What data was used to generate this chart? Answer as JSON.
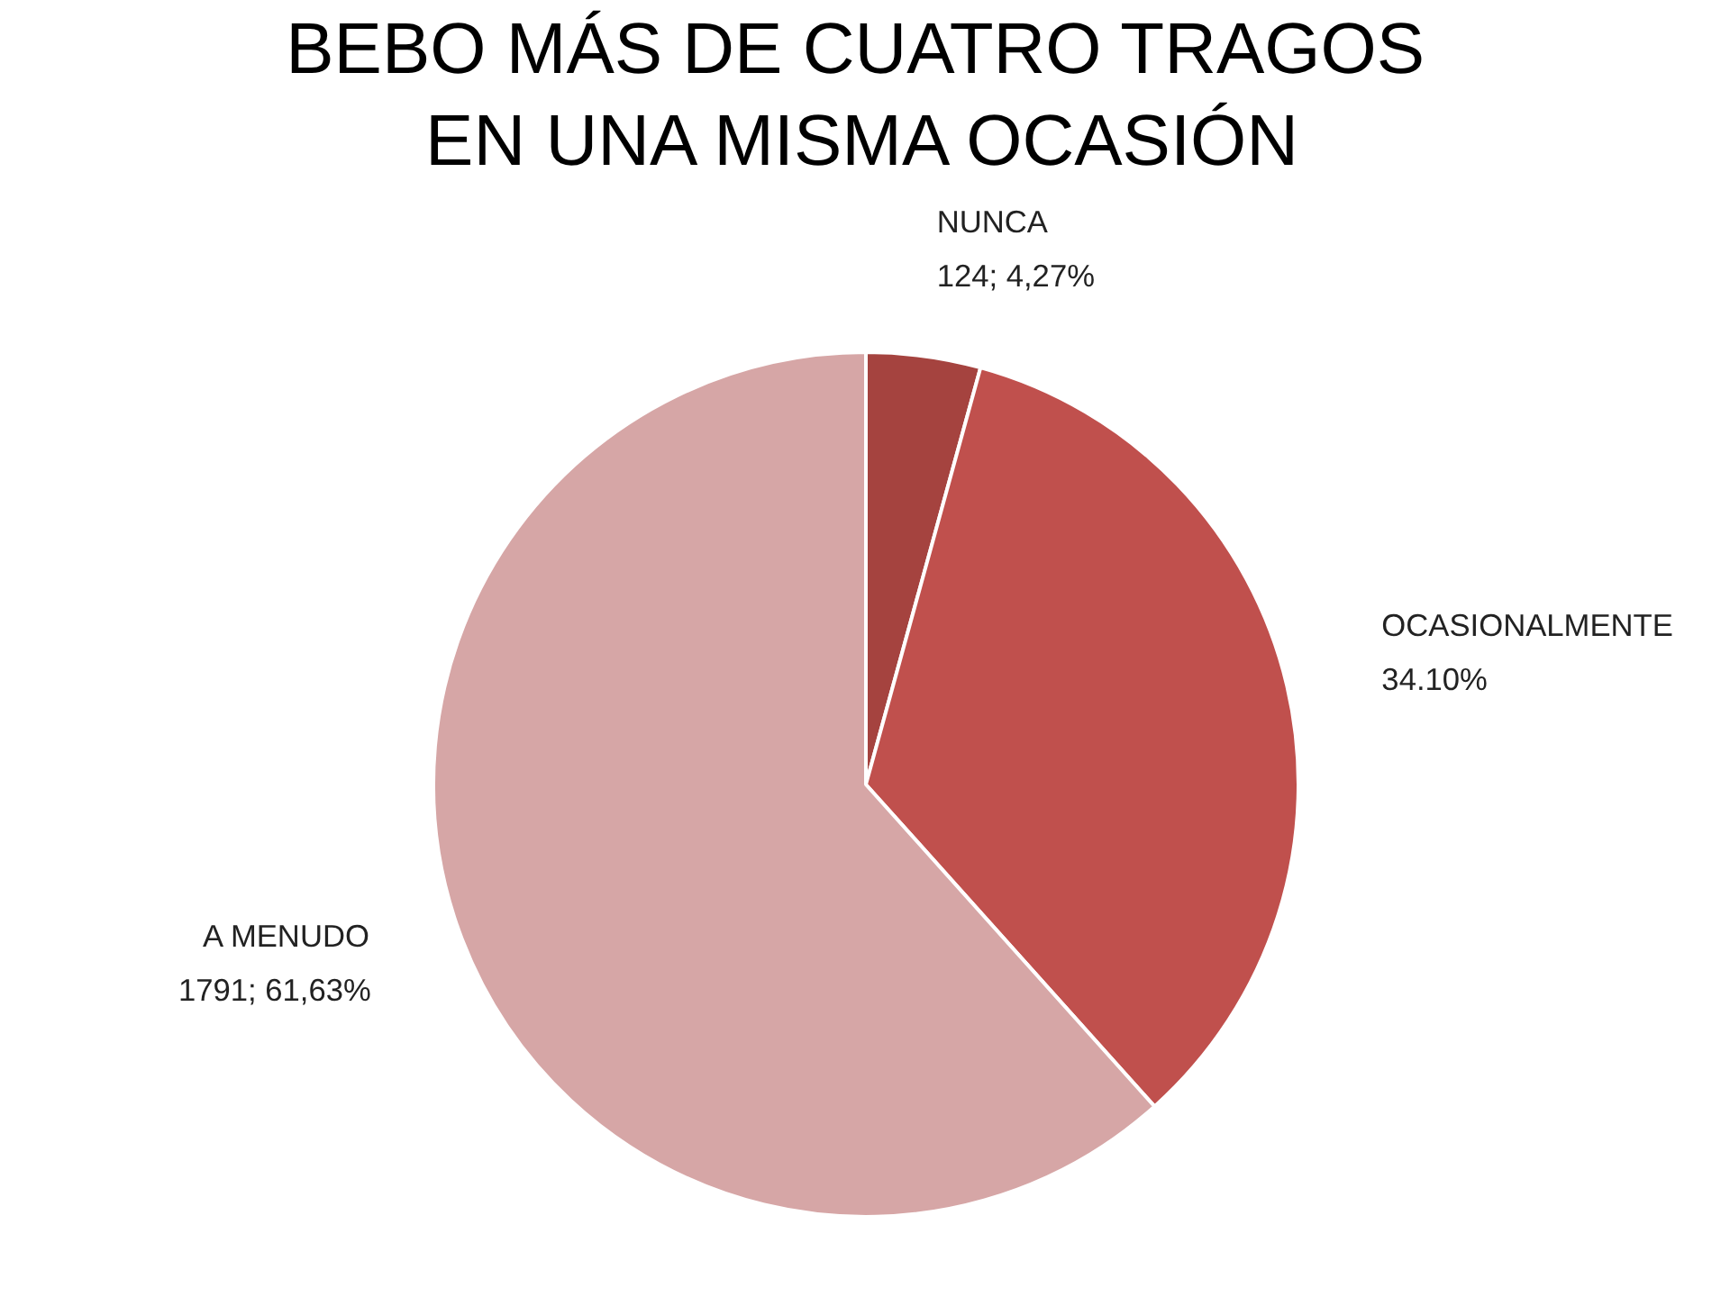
{
  "chart_data": {
    "type": "pie",
    "title": "BEBO MÁS  DE CUATRO TRAGOS  EN UNA MISMA OCASIÓN",
    "categories": [
      "NUNCA",
      "OCASIONALMENTE",
      "A MENUDO"
    ],
    "values": [
      4.27,
      34.1,
      61.63
    ],
    "colors": [
      "#a5433f",
      "#c0504d",
      "#d6a6a6"
    ],
    "value_labels": [
      "124; 4,27%",
      "34.10%",
      "1791; 61,63%"
    ]
  }
}
